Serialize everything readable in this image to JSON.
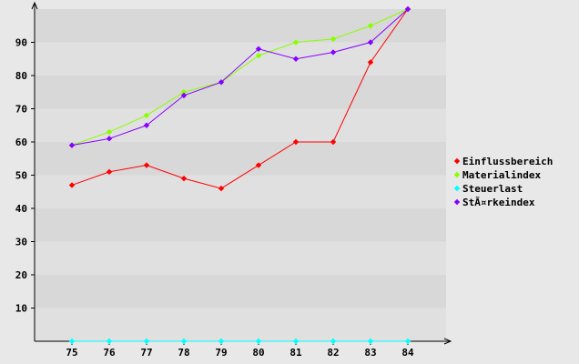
{
  "chart_data": {
    "type": "line",
    "title": "",
    "xlabel": "",
    "ylabel": "",
    "categories": [
      "75",
      "76",
      "77",
      "78",
      "79",
      "80",
      "81",
      "82",
      "83",
      "84"
    ],
    "ylim": [
      0,
      100
    ],
    "yticks": [
      10,
      20,
      30,
      40,
      50,
      60,
      70,
      80,
      90
    ],
    "grid": "horizontal alternating bands",
    "legend_position": "right",
    "series": [
      {
        "name": "Einflussbereich",
        "color": "#ff0000",
        "values": [
          47,
          51,
          53,
          49,
          46,
          53,
          60,
          60,
          84,
          100
        ]
      },
      {
        "name": "Materialindex",
        "color": "#88ff00",
        "values": [
          59,
          63,
          68,
          75,
          78,
          86,
          90,
          91,
          95,
          100
        ]
      },
      {
        "name": "Steuerlast",
        "color": "#00ffff",
        "values": [
          0,
          0,
          0,
          0,
          0,
          0,
          0,
          0,
          0,
          0
        ]
      },
      {
        "name": "StÃ¤rkeindex",
        "color": "#8800ff",
        "values": [
          59,
          61,
          65,
          74,
          78,
          88,
          85,
          87,
          90,
          100
        ]
      }
    ]
  },
  "colors": {
    "background": "#e8e8e8",
    "band_light": "#e0e0e0",
    "band_dark": "#d8d8d8",
    "axis": "#000000"
  }
}
